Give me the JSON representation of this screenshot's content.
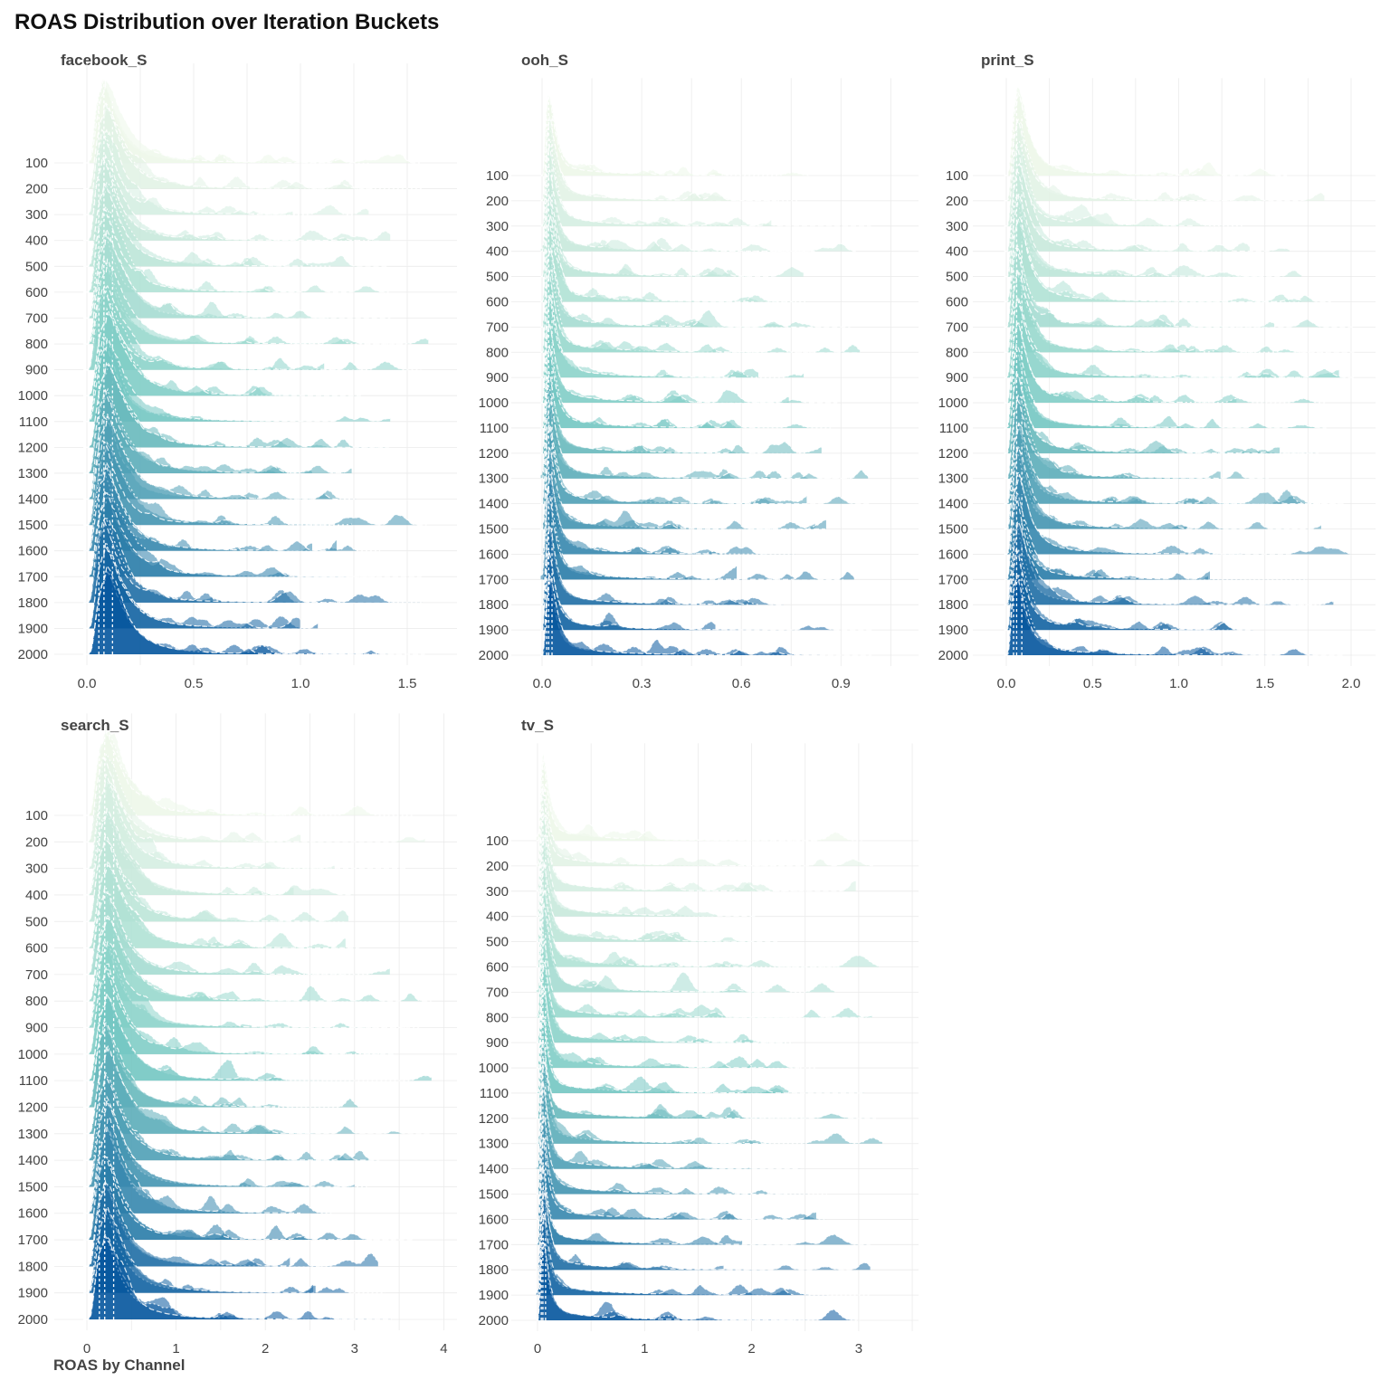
{
  "title": "ROAS Distribution over Iteration Buckets",
  "xlabel": "ROAS by Channel",
  "colors": {
    "low": "#edf8e9",
    "mid": "#7bccc4",
    "high": "#08589e",
    "dash": "#ffffff"
  },
  "chart_data": {
    "type": "ridgeline",
    "title": "ROAS Distribution over Iteration Buckets",
    "xlabel": "ROAS by Channel",
    "grid": true,
    "categories": [
      "100",
      "200",
      "300",
      "400",
      "500",
      "600",
      "700",
      "800",
      "900",
      "1000",
      "1100",
      "1200",
      "1300",
      "1400",
      "1500",
      "1600",
      "1700",
      "1800",
      "1900",
      "2000"
    ],
    "panels": [
      {
        "name": "facebook_S",
        "xticks": [
          0.0,
          0.5,
          1.0,
          1.5
        ],
        "tick_labels": [
          "0.0",
          "0.5",
          "1.0",
          "1.5"
        ],
        "xlim": [
          -0.1,
          1.65
        ],
        "mode": 0.08,
        "tail": 1.6
      },
      {
        "name": "ooh_S",
        "xticks": [
          0.0,
          0.3,
          0.6,
          0.9
        ],
        "tick_labels": [
          "0.0",
          "0.3",
          "0.6",
          "0.9"
        ],
        "xlim": [
          -0.06,
          1.05
        ],
        "mode": 0.02,
        "tail": 1.0
      },
      {
        "name": "print_S",
        "xticks": [
          0.0,
          0.5,
          1.0,
          1.5,
          2.0
        ],
        "tick_labels": [
          "0.0",
          "0.5",
          "1.0",
          "1.5",
          "2.0"
        ],
        "xlim": [
          -0.1,
          2.1
        ],
        "mode": 0.06,
        "tail": 2.05
      },
      {
        "name": "search_S",
        "xticks": [
          0,
          1,
          2,
          3,
          4
        ],
        "tick_labels": [
          "0",
          "1",
          "2",
          "3",
          "4"
        ],
        "xlim": [
          -0.3,
          4.1
        ],
        "mode": 0.2,
        "tail": 3.9
      },
      {
        "name": "tv_S",
        "xticks": [
          0,
          1,
          2,
          3
        ],
        "tick_labels": [
          "0",
          "1",
          "2",
          "3"
        ],
        "xlim": [
          -0.2,
          3.5
        ],
        "mode": 0.05,
        "tail": 3.3
      }
    ]
  }
}
